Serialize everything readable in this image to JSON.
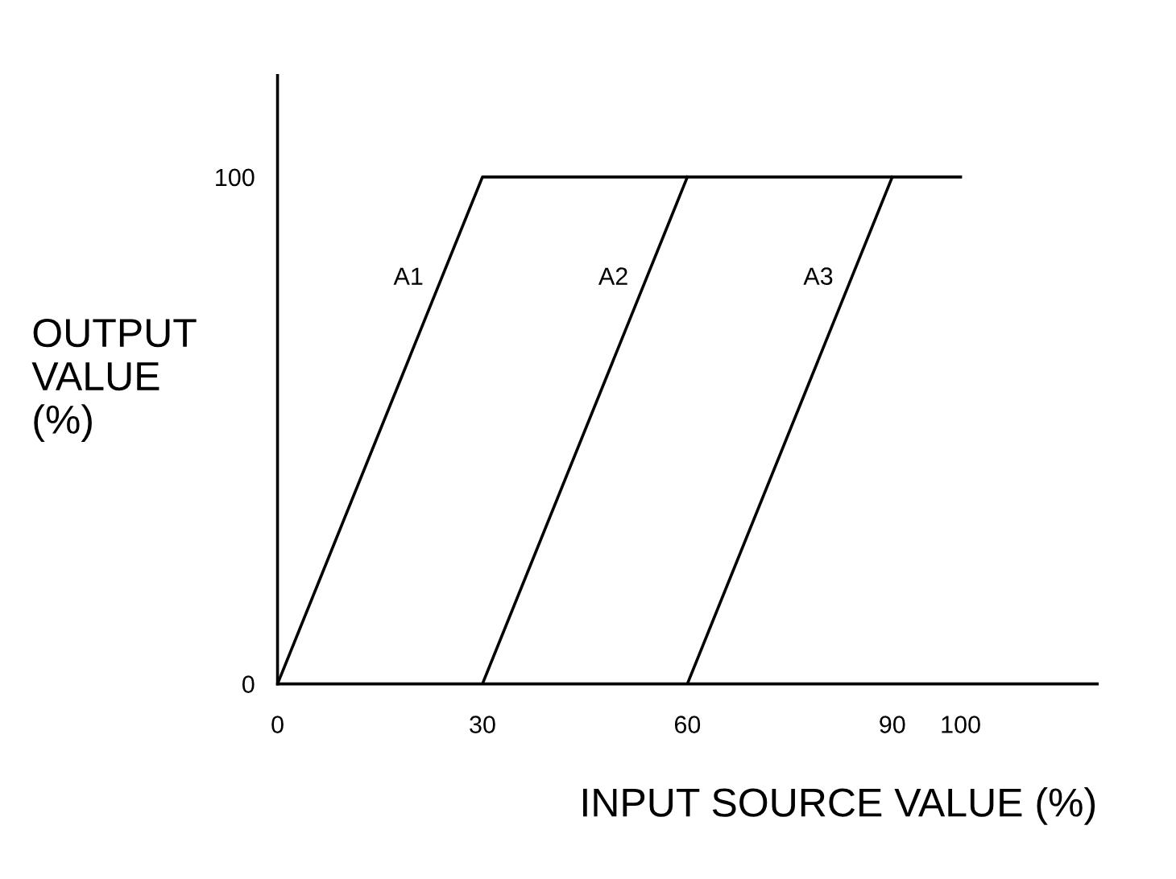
{
  "chart_data": {
    "type": "line",
    "xlabel": "INPUT SOURCE VALUE (%)",
    "ylabel": "OUTPUT\nVALUE\n(%)",
    "series": [
      {
        "name": "A1",
        "color": "#000000",
        "x": [
          0,
          30,
          100
        ],
        "values": [
          0,
          100,
          100
        ]
      },
      {
        "name": "A2",
        "color": "#000000",
        "x": [
          30,
          60
        ],
        "values": [
          0,
          100
        ]
      },
      {
        "name": "A3",
        "color": "#000000",
        "x": [
          60,
          90
        ],
        "values": [
          0,
          100
        ]
      }
    ],
    "xlim": [
      0,
      120
    ],
    "ylim": [
      0,
      120
    ],
    "xticks": [
      0,
      30,
      60,
      90,
      100
    ],
    "yticks": [
      0,
      100
    ],
    "grid": false,
    "legend": false,
    "marker": "none",
    "line_style": "solid"
  }
}
